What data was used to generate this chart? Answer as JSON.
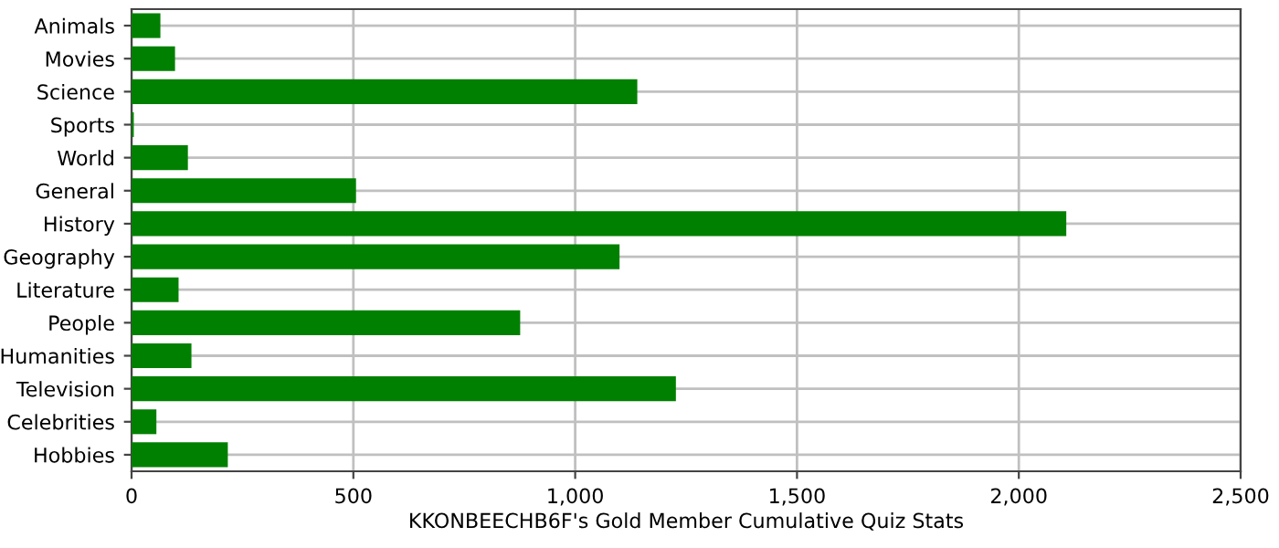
{
  "chart_data": {
    "type": "bar",
    "orientation": "horizontal",
    "xlabel": "KKONBEECHB6F's Gold Member Cumulative Quiz Stats",
    "categories": [
      "Animals",
      "Movies",
      "Science",
      "Sports",
      "World",
      "General",
      "History",
      "Geography",
      "Literature",
      "People",
      "Humanities",
      "Television",
      "Celebrities",
      "Hobbies"
    ],
    "values": [
      65,
      98,
      1140,
      5,
      127,
      506,
      2107,
      1100,
      106,
      876,
      135,
      1227,
      56,
      217
    ],
    "color": "#008000",
    "xlim": [
      0,
      2500
    ],
    "xticks": [
      0,
      500,
      {
        "value": 1000,
        "label": "1,000"
      },
      {
        "value": 1500,
        "label": "1,500"
      },
      {
        "value": 2000,
        "label": "2,000"
      },
      {
        "value": 2500,
        "label": "2,500"
      }
    ],
    "grid": true,
    "legend": false
  }
}
